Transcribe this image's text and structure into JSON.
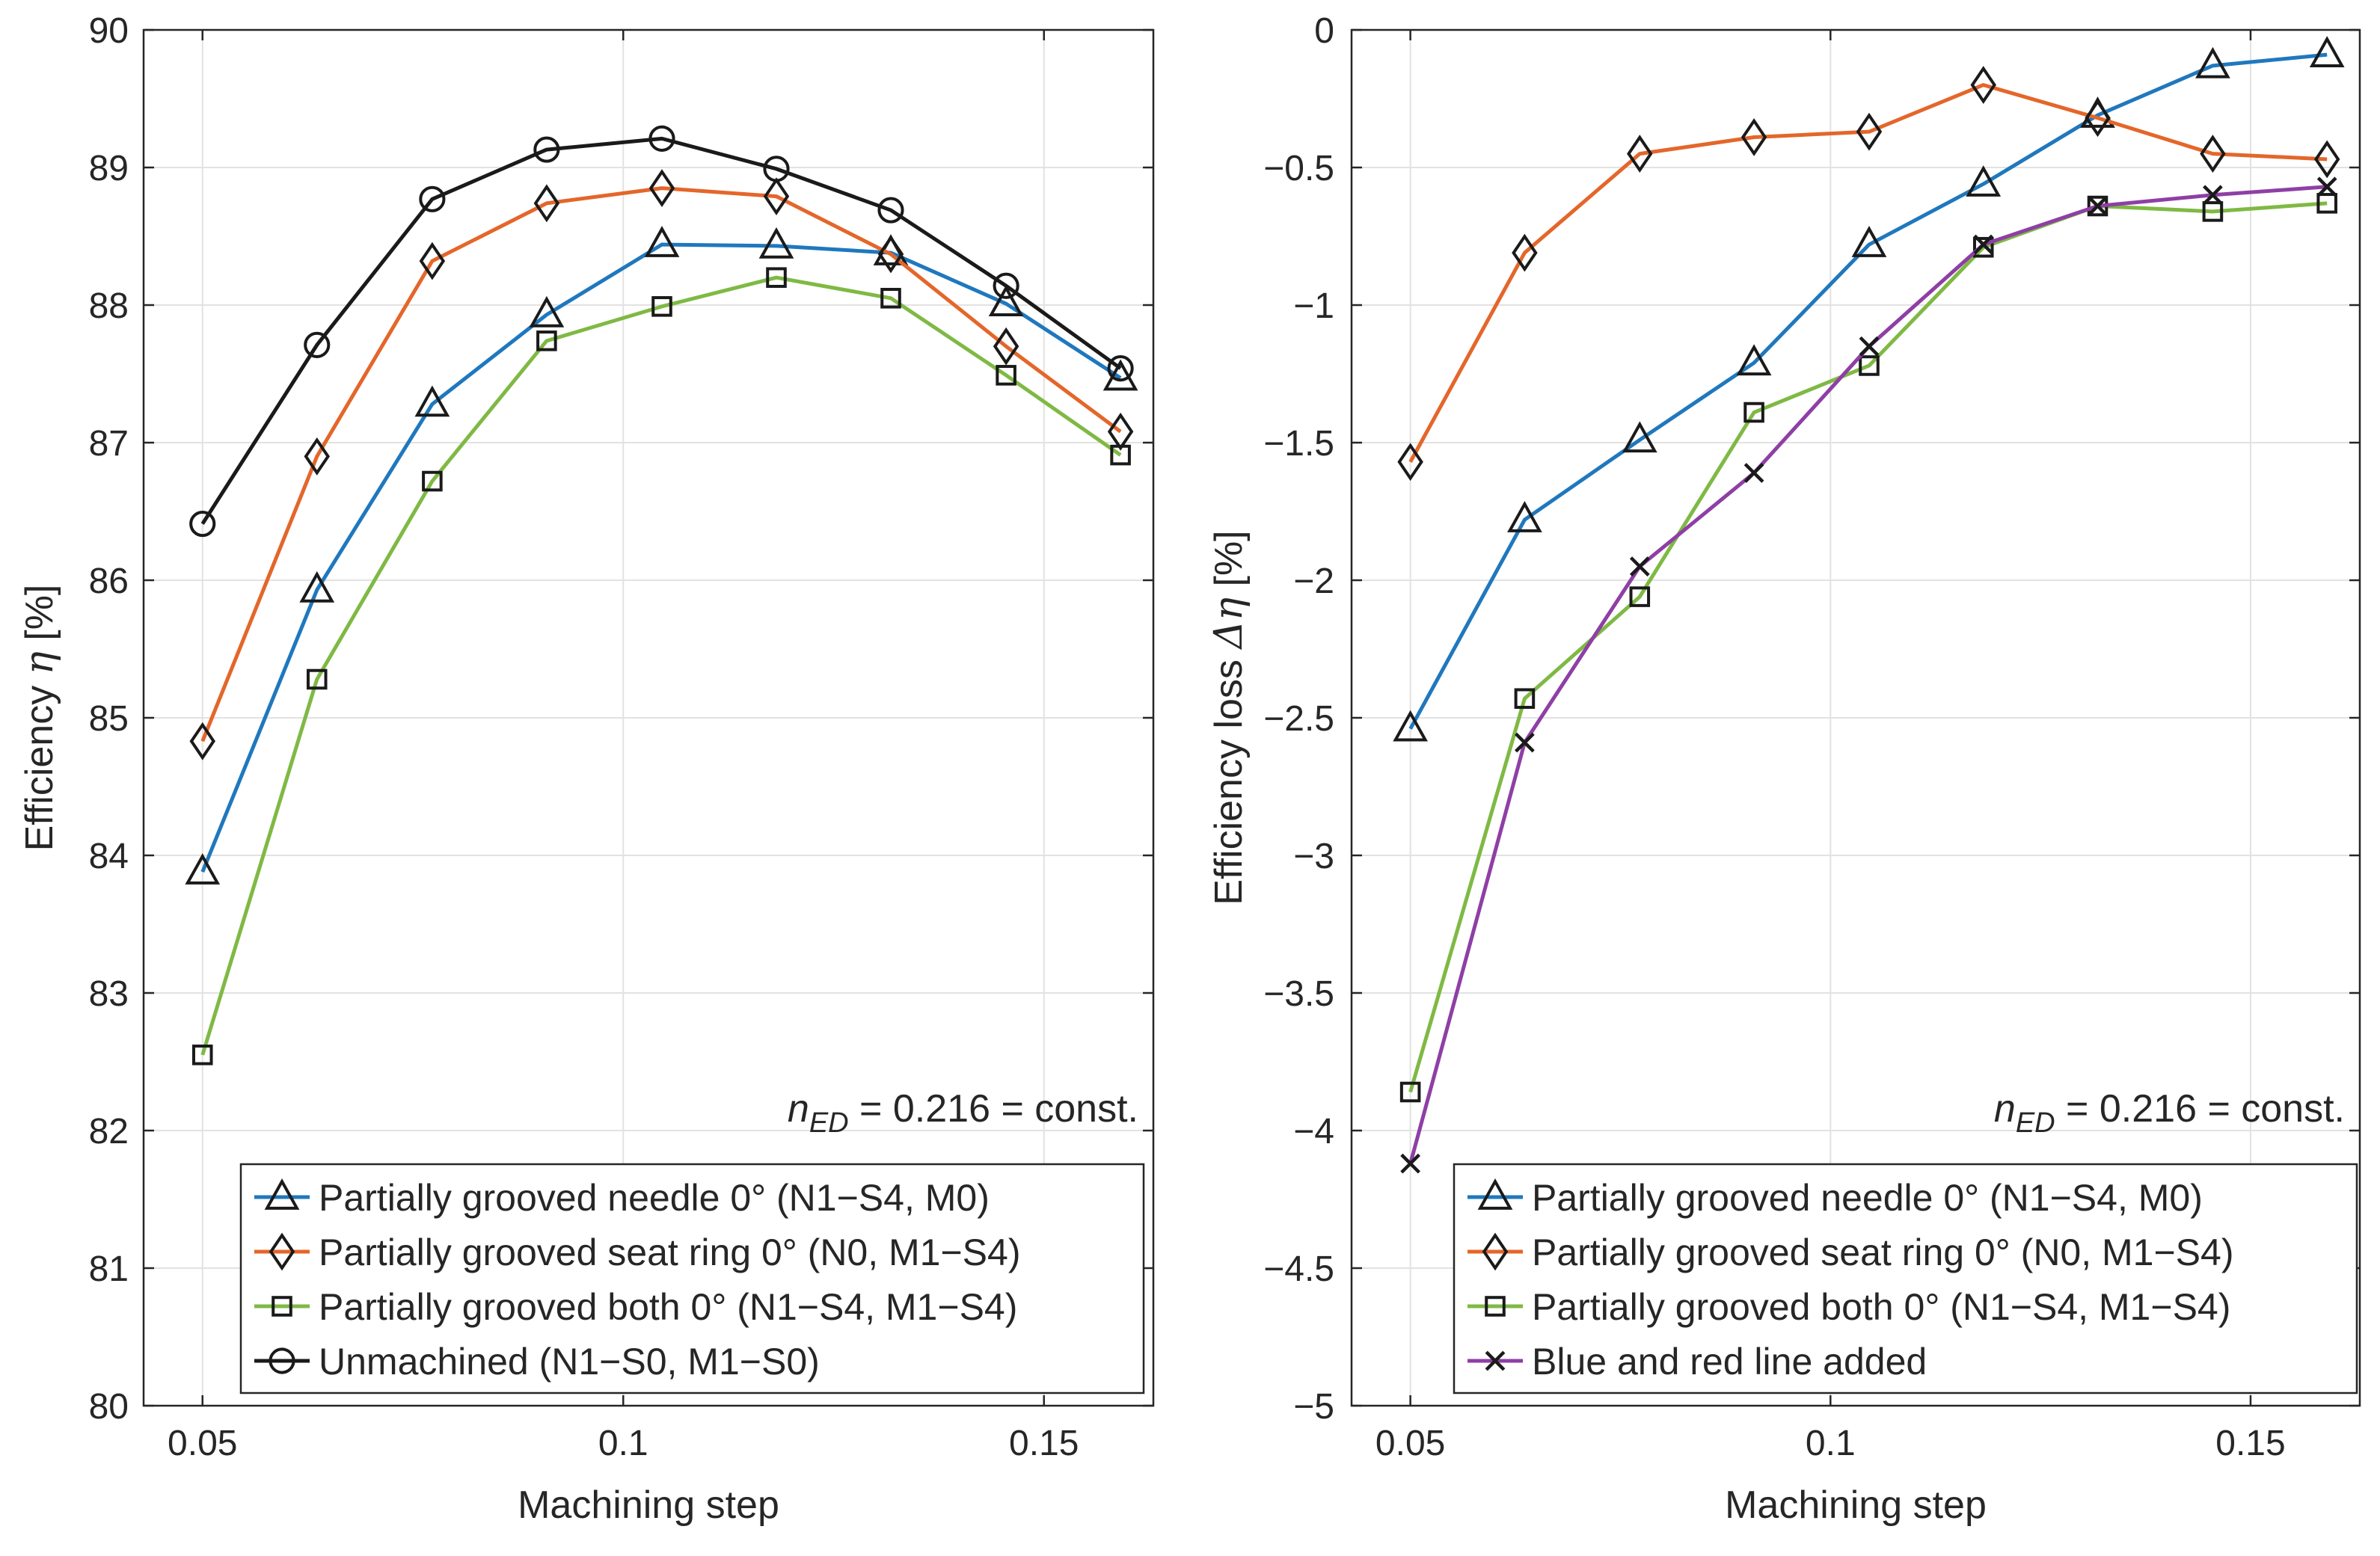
{
  "colors": {
    "blue": "#1F78BE",
    "orange": "#E4662A",
    "green": "#7FB944",
    "black": "#1a1a1a",
    "purple": "#8E3FA5",
    "grid": "#e2e2e2",
    "axis": "#262626"
  },
  "chart_data": [
    {
      "type": "line",
      "ylabel_main": "Efficiency ",
      "ylabel_symbol": "η",
      "ylabel_unit": " [%]",
      "xlabel": "Machining step",
      "xlim": [
        0.043,
        0.163
      ],
      "ylim": [
        80,
        90
      ],
      "xticks": [
        0.05,
        0.1,
        0.15
      ],
      "xtick_labels": [
        "0.05",
        "0.1",
        "0.15"
      ],
      "yticks": [
        80,
        81,
        82,
        83,
        84,
        85,
        86,
        87,
        88,
        89,
        90
      ],
      "ytick_labels": [
        "80",
        "81",
        "82",
        "83",
        "84",
        "85",
        "86",
        "87",
        "88",
        "89",
        "90"
      ],
      "grid": true,
      "annotation": {
        "var": "n",
        "sub": "ED",
        "rest": " = 0.216 = const."
      },
      "legend_position": "bottom-left",
      "x": [
        0.05,
        0.0636,
        0.0773,
        0.0909,
        0.1046,
        0.1182,
        0.1318,
        0.1455,
        0.1591
      ],
      "series": [
        {
          "name": "Partially grooved needle 0° (N1-S4, M0)",
          "color": "blue",
          "marker": "triangle",
          "values": [
            83.88,
            85.93,
            87.28,
            87.93,
            88.44,
            88.43,
            88.38,
            88.01,
            87.47
          ]
        },
        {
          "name": "Partially grooved seat ring 0° (N0, M1-S4)",
          "color": "orange",
          "marker": "diamond",
          "values": [
            84.83,
            86.9,
            88.32,
            88.74,
            88.85,
            88.79,
            88.37,
            87.7,
            87.08
          ]
        },
        {
          "name": "Partially grooved both 0° (N1-S4, M1-S4)",
          "color": "green",
          "marker": "square",
          "values": [
            82.55,
            85.28,
            86.72,
            87.74,
            87.99,
            88.2,
            88.05,
            87.49,
            86.91
          ]
        },
        {
          "name": "Unmachined (N1-S0, M1-S0)",
          "color": "black",
          "marker": "circle",
          "values": [
            86.41,
            87.71,
            88.77,
            89.13,
            89.21,
            88.99,
            88.69,
            88.14,
            87.54
          ]
        }
      ]
    },
    {
      "type": "line",
      "ylabel_main": "Efficiency loss ",
      "ylabel_symbol": "Δη",
      "ylabel_unit": " [%]",
      "xlabel": "Machining step",
      "xlim": [
        0.043,
        0.163
      ],
      "ylim": [
        -5,
        0
      ],
      "xticks": [
        0.05,
        0.1,
        0.15
      ],
      "xtick_labels": [
        "0.05",
        "0.1",
        "0.15"
      ],
      "yticks": [
        -5,
        -4.5,
        -4,
        -3.5,
        -3,
        -2.5,
        -2,
        -1.5,
        -1,
        -0.5,
        0
      ],
      "ytick_labels": [
        "-5",
        "-4.5",
        "-4",
        "-3.5",
        "-3",
        "-2.5",
        "-2",
        "-1.5",
        "-1",
        "-0.5",
        "0"
      ],
      "grid": true,
      "annotation": {
        "var": "n",
        "sub": "ED",
        "rest": " = 0.216 = const."
      },
      "legend_position": "bottom-left",
      "x": [
        0.05,
        0.0636,
        0.0773,
        0.0909,
        0.1046,
        0.1182,
        0.1318,
        0.1455,
        0.1591
      ],
      "series": [
        {
          "name": "Partially grooved needle 0° (N1-S4, M0)",
          "color": "blue",
          "marker": "triangle",
          "values": [
            -2.54,
            -1.78,
            -1.49,
            -1.21,
            -0.78,
            -0.56,
            -0.31,
            -0.13,
            -0.09
          ]
        },
        {
          "name": "Partially grooved seat ring 0° (N0, M1-S4)",
          "color": "orange",
          "marker": "diamond",
          "values": [
            -1.57,
            -0.81,
            -0.45,
            -0.39,
            -0.37,
            -0.2,
            -0.32,
            -0.45,
            -0.47
          ]
        },
        {
          "name": "Partially grooved both 0° (N1-S4, M1-S4)",
          "color": "green",
          "marker": "square",
          "values": [
            -3.86,
            -2.43,
            -2.06,
            -1.39,
            -1.22,
            -0.79,
            -0.64,
            -0.66,
            -0.63
          ]
        },
        {
          "name": "Blue and red line added",
          "color": "purple",
          "marker": "x",
          "values": [
            -4.12,
            -2.59,
            -1.95,
            -1.61,
            -1.15,
            -0.78,
            -0.64,
            -0.6,
            -0.57
          ]
        }
      ]
    }
  ]
}
